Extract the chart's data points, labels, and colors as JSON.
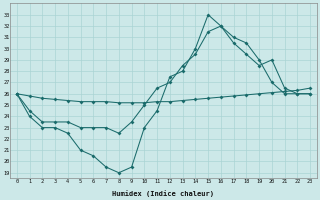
{
  "xlabel": "Humidex (Indice chaleur)",
  "background_color": "#cce8e8",
  "grid_color": "#aad4d4",
  "line_color": "#1a6b6b",
  "xlim": [
    -0.5,
    23.5
  ],
  "ylim": [
    18.5,
    34.0
  ],
  "xticks": [
    0,
    1,
    2,
    3,
    4,
    5,
    6,
    7,
    8,
    9,
    10,
    11,
    12,
    13,
    14,
    15,
    16,
    17,
    18,
    19,
    20,
    21,
    22,
    23
  ],
  "yticks": [
    19,
    20,
    21,
    22,
    23,
    24,
    25,
    26,
    27,
    28,
    29,
    30,
    31,
    32,
    33
  ],
  "s1": [
    26.0,
    24.0,
    23.0,
    23.0,
    22.5,
    21.0,
    20.5,
    19.5,
    19.0,
    19.5,
    23.0,
    24.5,
    27.5,
    28.0,
    30.0,
    33.0,
    32.0,
    31.0,
    30.5,
    29.0,
    27.0,
    26.0,
    26.0,
    26.0
  ],
  "s2": [
    26.0,
    24.5,
    23.5,
    23.5,
    23.5,
    23.0,
    23.0,
    23.0,
    22.5,
    23.5,
    25.0,
    26.5,
    27.0,
    28.5,
    29.5,
    31.5,
    32.0,
    30.5,
    29.5,
    28.5,
    29.0,
    26.5,
    26.0,
    26.0
  ],
  "s3": [
    26.0,
    25.8,
    25.6,
    25.5,
    25.4,
    25.3,
    25.3,
    25.3,
    25.2,
    25.2,
    25.2,
    25.3,
    25.3,
    25.4,
    25.5,
    25.6,
    25.7,
    25.8,
    25.9,
    26.0,
    26.1,
    26.2,
    26.3,
    26.5
  ]
}
